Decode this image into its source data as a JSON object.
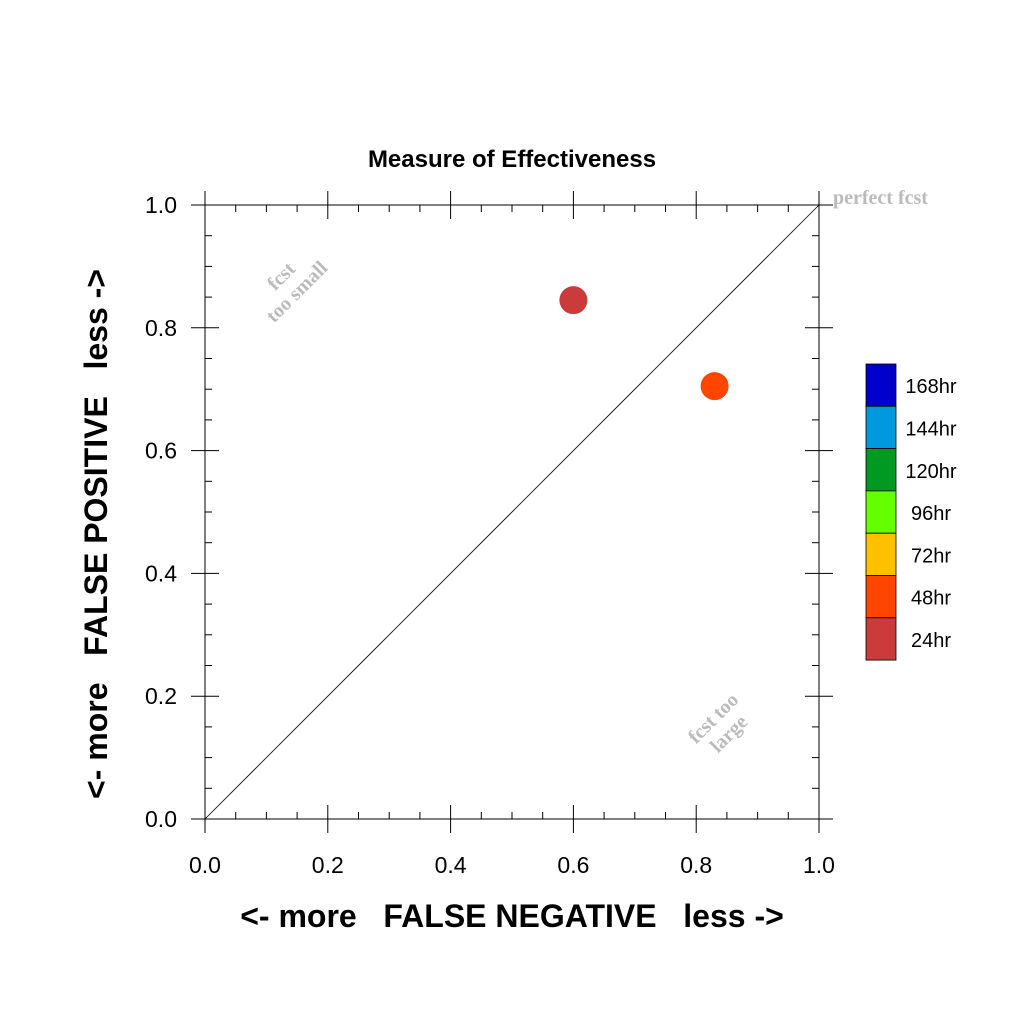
{
  "chart_data": {
    "type": "scatter",
    "title": "Measure of Effectiveness",
    "xlabel": "<- more   FALSE NEGATIVE   less ->",
    "ylabel": "<- more   FALSE POSITIVE   less ->",
    "xlim": [
      0.0,
      1.0
    ],
    "ylim": [
      0.0,
      1.0
    ],
    "xticks": [
      "0.0",
      "0.2",
      "0.4",
      "0.6",
      "0.8",
      "1.0"
    ],
    "yticks": [
      "0.0",
      "0.2",
      "0.4",
      "0.6",
      "0.8",
      "1.0"
    ],
    "grid": false,
    "reference_line": "diagonal",
    "points": [
      {
        "x": 0.6,
        "y": 0.845,
        "lead": "24hr",
        "color": "#cc3b3b"
      },
      {
        "x": 0.83,
        "y": 0.705,
        "lead": "48hr",
        "color": "#ff4500"
      }
    ],
    "annotations": {
      "perfect": "perfect fcst",
      "small_line1": "fcst",
      "small_line2": "too small",
      "large_line1": "fcst too",
      "large_line2": "large"
    },
    "legend": {
      "placement": "right",
      "items": [
        {
          "label": "168hr",
          "color": "#0000cc"
        },
        {
          "label": "144hr",
          "color": "#0099dd"
        },
        {
          "label": "120hr",
          "color": "#009922"
        },
        {
          "label": "96hr",
          "color": "#66ff00"
        },
        {
          "label": "72hr",
          "color": "#ffc000"
        },
        {
          "label": "48hr",
          "color": "#ff4500"
        },
        {
          "label": "24hr",
          "color": "#cc3b3b"
        }
      ]
    }
  }
}
